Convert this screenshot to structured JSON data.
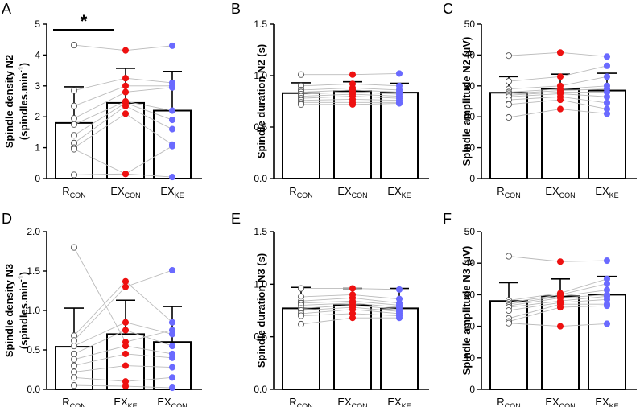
{
  "colors": {
    "con": "#ffffff",
    "ke": "#ee1111",
    "exke_blue": "#6a6aff",
    "line": "#bbbbbb",
    "axis": "#000000"
  },
  "chart_data": [
    {
      "id": "A",
      "panel_label": "A",
      "type": "bar",
      "ylabel": "Spindle density N2",
      "ylabel2_main": "(spindles.min",
      "ylabel2_sup": "-1",
      "ylabel2_end": ")",
      "ylim": [
        0,
        5
      ],
      "yticks": [
        0,
        1,
        2,
        3,
        4,
        5
      ],
      "ytick_labels": [
        "0",
        "1",
        "2",
        "3",
        "4",
        "5"
      ],
      "categories": [
        {
          "main": "R",
          "sub": "CON",
          "group": "con"
        },
        {
          "main": "EX",
          "sub": "CON",
          "group": "ke"
        },
        {
          "main": "EX",
          "sub": "KE",
          "group": "exke_blue"
        }
      ],
      "means": [
        1.8,
        2.45,
        2.2
      ],
      "sd": [
        1.17,
        1.12,
        1.27
      ],
      "subjects": [
        [
          4.32,
          4.15,
          4.3
        ],
        [
          2.85,
          3.25,
          3.1
        ],
        [
          2.35,
          3.0,
          3.0
        ],
        [
          1.95,
          2.8,
          2.95
        ],
        [
          1.75,
          2.5,
          2.2
        ],
        [
          1.4,
          2.45,
          1.9
        ],
        [
          1.15,
          2.35,
          1.6
        ],
        [
          1.0,
          2.1,
          1.1
        ],
        [
          0.95,
          0.15,
          1.05
        ],
        [
          0.12,
          0.15,
          0.05
        ]
      ],
      "significance": {
        "label": "*",
        "from": 0,
        "to": 1
      }
    },
    {
      "id": "B",
      "panel_label": "B",
      "type": "bar",
      "ylabel": "Spindle duration N2 (s)",
      "ylim": [
        0,
        1.5
      ],
      "yticks": [
        0,
        0.5,
        1.0,
        1.5
      ],
      "ytick_labels": [
        "0.0",
        "0.5",
        "1.0",
        "1.5"
      ],
      "categories": [
        {
          "main": "R",
          "sub": "CON",
          "group": "con"
        },
        {
          "main": "EX",
          "sub": "CON",
          "group": "ke"
        },
        {
          "main": "EX",
          "sub": "KE",
          "group": "exke_blue"
        }
      ],
      "means": [
        0.83,
        0.85,
        0.835
      ],
      "sd": [
        0.1,
        0.09,
        0.09
      ],
      "subjects": [
        [
          1.01,
          1.01,
          1.02
        ],
        [
          0.9,
          0.92,
          0.9
        ],
        [
          0.86,
          0.88,
          0.86
        ],
        [
          0.84,
          0.86,
          0.84
        ],
        [
          0.82,
          0.84,
          0.82
        ],
        [
          0.8,
          0.82,
          0.8
        ],
        [
          0.78,
          0.8,
          0.78
        ],
        [
          0.76,
          0.77,
          0.76
        ],
        [
          0.74,
          0.74,
          0.74
        ],
        [
          0.72,
          0.72,
          0.73
        ]
      ]
    },
    {
      "id": "C",
      "panel_label": "C",
      "type": "bar",
      "ylabel": "Spindle amplitude N2 (µV)",
      "ylim": [
        0,
        50
      ],
      "yticks": [
        0,
        10,
        20,
        30,
        40,
        50
      ],
      "ytick_labels": [
        "0",
        "10",
        "20",
        "30",
        "40",
        "50"
      ],
      "categories": [
        {
          "main": "R",
          "sub": "CON",
          "group": "con"
        },
        {
          "main": "EX",
          "sub": "CON",
          "group": "ke"
        },
        {
          "main": "EX",
          "sub": "KE",
          "group": "exke_blue"
        }
      ],
      "means": [
        27.8,
        29.0,
        28.5
      ],
      "sd": [
        5.2,
        4.8,
        5.6
      ],
      "subjects": [
        [
          39.8,
          40.8,
          39.5
        ],
        [
          31.5,
          33.0,
          36.5
        ],
        [
          29.0,
          30.0,
          33.0
        ],
        [
          28.0,
          29.0,
          30.0
        ],
        [
          27.5,
          28.5,
          29.0
        ],
        [
          27.0,
          28.0,
          28.0
        ],
        [
          26.5,
          27.5,
          26.5
        ],
        [
          25.5,
          26.5,
          24.5
        ],
        [
          24.0,
          25.5,
          22.5
        ],
        [
          19.8,
          22.5,
          21.0
        ]
      ]
    },
    {
      "id": "D",
      "panel_label": "D",
      "type": "bar",
      "ylabel": "Spindle density N3",
      "ylabel2_main": "(spindles.min",
      "ylabel2_sup": "-1",
      "ylabel2_end": ")",
      "ylim": [
        0,
        2.0
      ],
      "yticks": [
        0,
        0.5,
        1.0,
        1.5,
        2.0
      ],
      "ytick_labels": [
        "0.0",
        "0.5",
        "1.0",
        "1.5",
        "2.0"
      ],
      "categories": [
        {
          "main": "R",
          "sub": "CON",
          "group": "con"
        },
        {
          "main": "EX",
          "sub": "KE",
          "group": "ke"
        },
        {
          "main": "EX",
          "sub": "CON",
          "group": "exke_blue"
        }
      ],
      "means": [
        0.54,
        0.7,
        0.6
      ],
      "sd": [
        0.49,
        0.43,
        0.45
      ],
      "subjects": [
        [
          1.8,
          0.6,
          0.75
        ],
        [
          0.68,
          1.37,
          0.85
        ],
        [
          0.62,
          1.3,
          1.51
        ],
        [
          0.55,
          0.85,
          0.7
        ],
        [
          0.45,
          0.75,
          0.55
        ],
        [
          0.38,
          0.55,
          0.45
        ],
        [
          0.3,
          0.45,
          0.4
        ],
        [
          0.22,
          0.3,
          0.28
        ],
        [
          0.15,
          0.1,
          0.15
        ],
        [
          0.05,
          0.04,
          0.02
        ]
      ]
    },
    {
      "id": "E",
      "panel_label": "E",
      "type": "bar",
      "ylabel": "Spindle duration N3 (s)",
      "ylim": [
        0,
        1.5
      ],
      "yticks": [
        0,
        0.5,
        1.0,
        1.5
      ],
      "ytick_labels": [
        "0.0",
        "0.5",
        "1.0",
        "1.5"
      ],
      "categories": [
        {
          "main": "R",
          "sub": "CON",
          "group": "con"
        },
        {
          "main": "EX",
          "sub": "CON",
          "group": "ke"
        },
        {
          "main": "EX",
          "sub": "KE",
          "group": "exke_blue"
        }
      ],
      "means": [
        0.77,
        0.8,
        0.77
      ],
      "sd": [
        0.2,
        0.16,
        0.19
      ],
      "subjects": [
        [
          0.96,
          0.96,
          0.95
        ],
        [
          0.88,
          0.9,
          0.86
        ],
        [
          0.84,
          0.87,
          0.82
        ],
        [
          0.82,
          0.84,
          0.8
        ],
        [
          0.8,
          0.82,
          0.78
        ],
        [
          0.77,
          0.8,
          0.76
        ],
        [
          0.75,
          0.78,
          0.74
        ],
        [
          0.72,
          0.76,
          0.72
        ],
        [
          0.7,
          0.72,
          0.7
        ],
        [
          0.62,
          0.68,
          0.68
        ]
      ]
    },
    {
      "id": "F",
      "panel_label": "F",
      "type": "bar",
      "ylabel": "Spindle amplitude N3 (µV)",
      "ylim": [
        0,
        50
      ],
      "yticks": [
        0,
        10,
        20,
        30,
        40,
        50
      ],
      "ytick_labels": [
        "0",
        "10",
        "20",
        "30",
        "40",
        "50"
      ],
      "categories": [
        {
          "main": "R",
          "sub": "CON",
          "group": "con"
        },
        {
          "main": "EX",
          "sub": "CON",
          "group": "ke"
        },
        {
          "main": "EX",
          "sub": "KE",
          "group": "exke_blue"
        }
      ],
      "means": [
        28.0,
        29.5,
        30.0
      ],
      "sd": [
        5.8,
        5.5,
        5.8
      ],
      "subjects": [
        [
          42.2,
          40.5,
          40.8
        ],
        [
          28.2,
          30.5,
          35.0
        ],
        [
          27.5,
          30.0,
          33.5
        ],
        [
          27.0,
          29.5,
          31.5
        ],
        [
          26.5,
          29.0,
          30.0
        ],
        [
          26.0,
          28.0,
          29.5
        ],
        [
          25.0,
          27.5,
          28.5
        ],
        [
          22.5,
          27.0,
          27.0
        ],
        [
          21.5,
          26.0,
          26.5
        ],
        [
          21.0,
          20.0,
          20.8
        ]
      ]
    }
  ]
}
